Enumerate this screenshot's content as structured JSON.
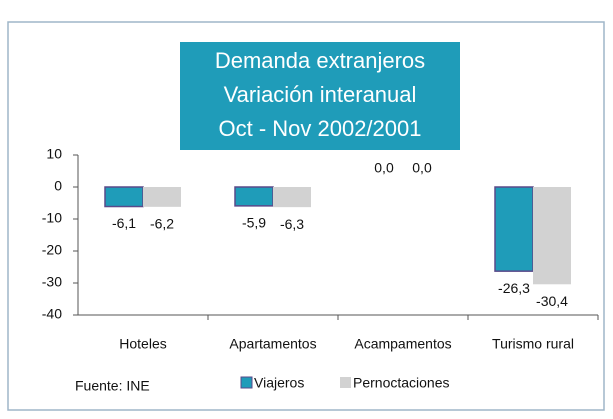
{
  "chart_data": {
    "type": "bar",
    "title": [
      "Demanda extranjeros",
      "Variación interanual",
      "Oct - Nov 2002/2001"
    ],
    "categories": [
      "Hoteles",
      "Apartamentos",
      "Acampamentos",
      "Turismo rural"
    ],
    "series": [
      {
        "name": "Viajeros",
        "color": "#1f9cb9",
        "values": [
          -6.1,
          -5.9,
          0.0,
          -26.3
        ],
        "value_labels": [
          "-6,1",
          "-5,9",
          "0,0",
          "-26,3"
        ]
      },
      {
        "name": "Pernoctaciones",
        "color": "#d2d2d2",
        "values": [
          -6.2,
          -6.3,
          0.0,
          -30.4
        ],
        "value_labels": [
          "-6,2",
          "-6,3",
          "0,0",
          "-30,4"
        ]
      }
    ],
    "ylim": [
      -40,
      10
    ],
    "yticks": [
      10,
      0,
      -10,
      -20,
      -30,
      -40
    ],
    "source": "Fuente: INE",
    "legend": "bottom"
  }
}
